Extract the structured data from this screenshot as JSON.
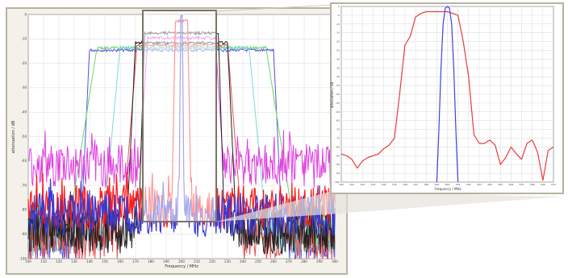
{
  "chart_data": [
    {
      "id": "main",
      "type": "line",
      "xlabel": "Frequency / MHz",
      "ylabel": "attenuation / dB",
      "xlim": [
        100,
        300
      ],
      "ylim": [
        -100,
        0
      ],
      "x_ticks": [
        "100",
        "110",
        "120",
        "130",
        "140",
        "150",
        "160",
        "170",
        "180",
        "190",
        "200",
        "210",
        "220",
        "230",
        "240",
        "250",
        "260",
        "270",
        "280",
        "290",
        "300"
      ],
      "y_ticks": [
        "0",
        "-10",
        "-20",
        "-30",
        "-40",
        "-50",
        "-60",
        "-70",
        "-80",
        "-90",
        "-100"
      ],
      "grid": true,
      "series": [
        {
          "color": "#5a55d8",
          "passband": [
            140,
            260
          ],
          "edge": 3,
          "peak": -14,
          "floor": -96
        },
        {
          "color": "#6ed66e",
          "passband": [
            145,
            255
          ],
          "edge": 10,
          "peak": -13,
          "floor": -92
        },
        {
          "color": "#7fd8d8",
          "passband": [
            160,
            244
          ],
          "edge": 6,
          "peak": -13,
          "floor": -93
        },
        {
          "color": "#e85050",
          "passband": [
            171,
            230
          ],
          "edge": 5,
          "peak": -12,
          "floor": -95
        },
        {
          "color": "#e040e0",
          "passband": [
            178,
            222
          ],
          "edge": 4,
          "peak": -9,
          "floor": -65
        },
        {
          "color": "#222222",
          "passband": [
            170,
            230
          ],
          "edge": 3,
          "peak": -11,
          "floor": -92
        },
        {
          "color": "#222222",
          "passband": [
            176,
            224
          ],
          "edge": 2,
          "peak": -7,
          "floor": -90
        },
        {
          "color": "#ff1a1a",
          "passband": [
            196,
            204
          ],
          "edge": 1.2,
          "peak": -2,
          "floor": -82
        },
        {
          "color": "#3a3ad0",
          "passband": [
            199.5,
            200.5
          ],
          "edge": 0.6,
          "peak": 0,
          "floor": -85
        }
      ]
    },
    {
      "id": "inset",
      "type": "line",
      "xlabel": "Frequency / MHz",
      "ylabel": "attenuation / dB",
      "xlim": [
        190,
        210
      ],
      "ylim": [
        -100,
        0
      ],
      "x_ticks": [
        "190",
        "191",
        "192",
        "193",
        "194",
        "195",
        "196",
        "197",
        "198",
        "199",
        "200",
        "201",
        "202",
        "203",
        "204",
        "205",
        "206",
        "207",
        "208",
        "209",
        "210"
      ],
      "y_ticks": [
        "0",
        "-5",
        "-10",
        "-15",
        "-20",
        "-25",
        "-30",
        "-35",
        "-40",
        "-45",
        "-50",
        "-55",
        "-60",
        "-65",
        "-70",
        "-75",
        "-80",
        "-85",
        "-90",
        "-95",
        "-100"
      ],
      "grid": true,
      "series": [
        {
          "color": "#e83c3c",
          "x": [
            190,
            190.5,
            191,
            191.5,
            192,
            192.5,
            193,
            193.5,
            194,
            194.5,
            195,
            195.5,
            196,
            196.5,
            197,
            197.5,
            198,
            198.5,
            199,
            199.5,
            200,
            200.5,
            201,
            201.5,
            202,
            202.5,
            203,
            203.5,
            204,
            204.5,
            205,
            205.5,
            206,
            206.5,
            207,
            207.5,
            208,
            208.5,
            209,
            209.5,
            210
          ],
          "y": [
            -84,
            -85,
            -87,
            -92,
            -88,
            -86,
            -85,
            -84,
            -81,
            -79,
            -75,
            -50,
            -22,
            -17,
            -6,
            -4,
            -3,
            -3,
            -3,
            -3,
            -3,
            -4,
            -5,
            -20,
            -40,
            -73,
            -78,
            -78,
            -76,
            -79,
            -90,
            -86,
            -80,
            -84,
            -87,
            -78,
            -76,
            -83,
            -99,
            -82,
            -80
          ]
        },
        {
          "color": "#4040e0",
          "x": [
            199.0,
            199.2,
            199.4,
            199.6,
            199.8,
            200.0,
            200.2,
            200.4,
            200.6,
            200.8,
            201.0
          ],
          "y": [
            -100,
            -70,
            -35,
            -10,
            -1,
            0,
            -1,
            -10,
            -35,
            -70,
            -100
          ]
        }
      ]
    }
  ]
}
